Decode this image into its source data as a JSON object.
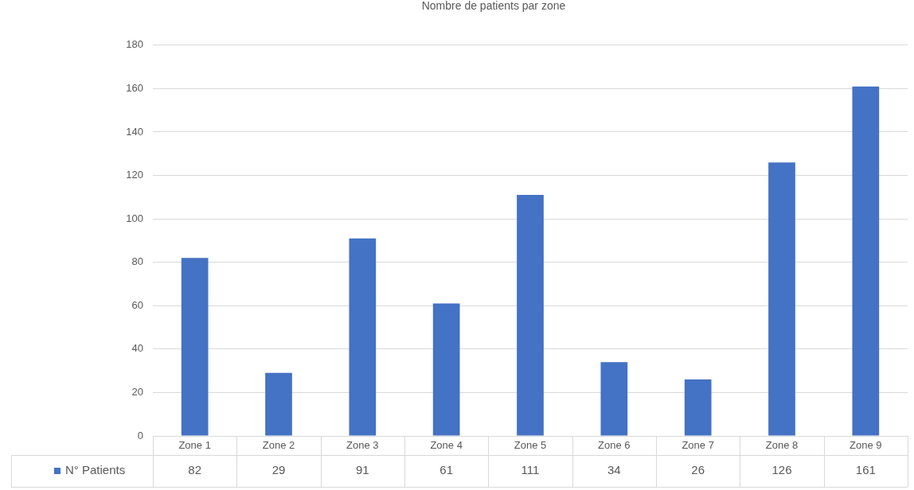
{
  "chart_data": {
    "type": "bar",
    "title": "Nombre de patients par zone",
    "categories": [
      "Zone 1",
      "Zone 2",
      "Zone 3",
      "Zone 4",
      "Zone 5",
      "Zone 6",
      "Zone 7",
      "Zone 8",
      "Zone 9"
    ],
    "series": [
      {
        "name": "N° Patients",
        "color": "#4472c4",
        "values": [
          82,
          29,
          91,
          61,
          111,
          34,
          26,
          126,
          161
        ]
      }
    ],
    "ylim": [
      0,
      180
    ],
    "yticks": [
      0,
      20,
      40,
      60,
      80,
      100,
      120,
      140,
      160,
      180
    ],
    "grid": "y",
    "legend": "bottom left",
    "data_labels": true
  }
}
